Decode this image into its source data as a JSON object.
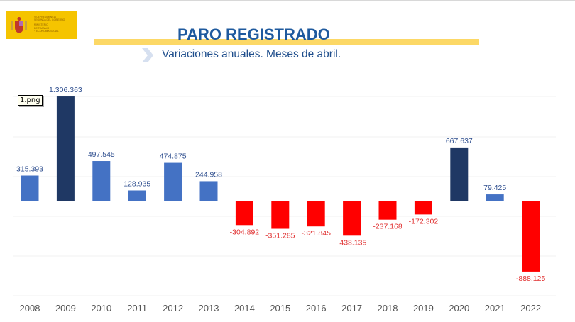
{
  "logo": {
    "line1": "VICEPRESIDENCIA",
    "line2": "SEGUNDA DEL GOBIERNO",
    "line3": "MINISTERIO",
    "line4": "DE TRABAJO",
    "line5": "Y ECONOMÍA SOCIAL",
    "icon": "coat-of-arms-icon"
  },
  "tooltip": "1.png",
  "colors": {
    "accent_band": "#fcd866",
    "title": "#1f5a9e",
    "positive": "#4472c4",
    "positive_highlight": "#1f3864",
    "negative": "#ff0000",
    "positive_label": "#2f4f8f",
    "negative_label": "#e03030"
  },
  "chart_data": {
    "type": "bar",
    "title": "PARO REGISTRADO",
    "subtitle": "Variaciones anuales. Meses de abril.",
    "xlabel": "",
    "ylabel": "",
    "grid": true,
    "legend": "none",
    "ylim": [
      -1000000,
      1400000
    ],
    "categories": [
      "2008",
      "2009",
      "2010",
      "2011",
      "2012",
      "2013",
      "2014",
      "2015",
      "2016",
      "2017",
      "2018",
      "2019",
      "2020",
      "2021",
      "2022"
    ],
    "values": [
      315393,
      1306363,
      497545,
      128935,
      474875,
      244958,
      -304892,
      -351285,
      -321845,
      -438135,
      -237168,
      -172302,
      667637,
      79425,
      -888125
    ],
    "labels": [
      "315.393",
      "1.306.363",
      "497.545",
      "128.935",
      "474.875",
      "244.958",
      "-304.892",
      "-351.285",
      "-321.845",
      "-438.135",
      "-237.168",
      "-172.302",
      "667.637",
      "79.425",
      "-888.125"
    ],
    "highlighted": [
      "2009",
      "2020"
    ]
  }
}
